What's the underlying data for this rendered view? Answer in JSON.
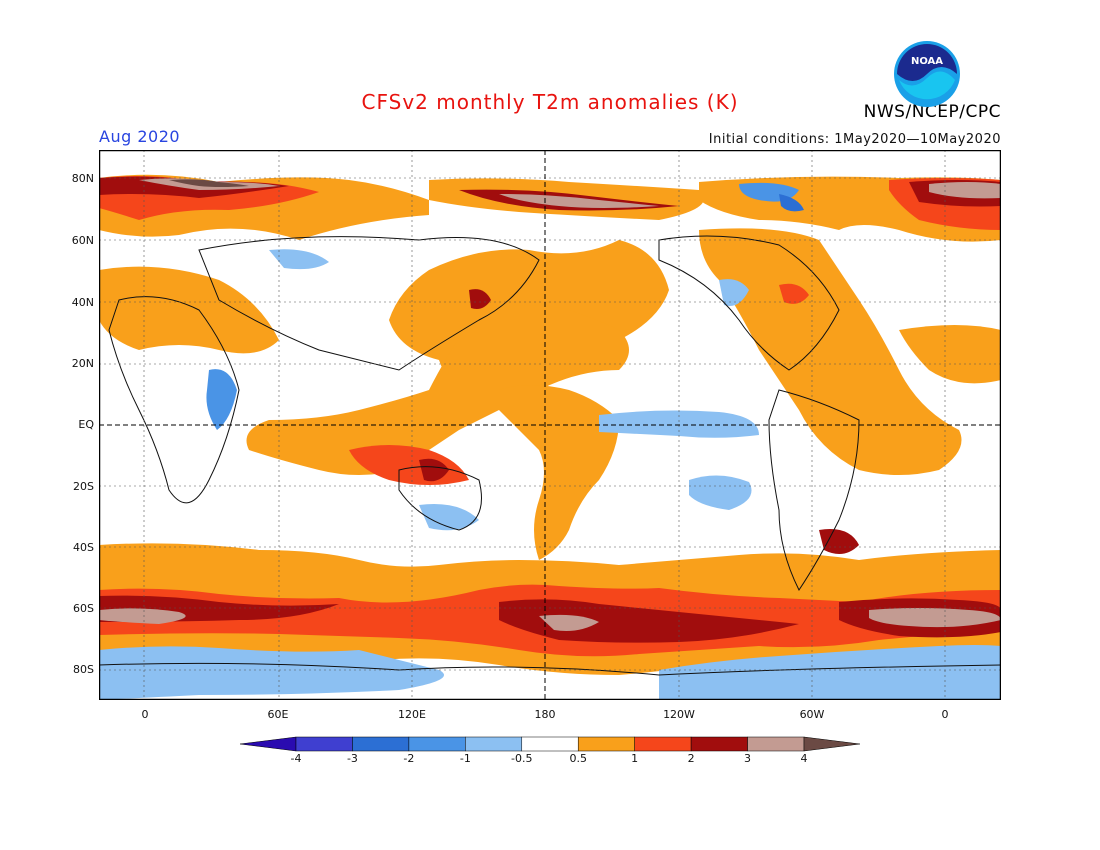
{
  "header": {
    "title": "CFSv2 monthly T2m anomalies (K)",
    "month": "Aug 2020",
    "initial_conditions": "Initial conditions: 1May2020—10May2020",
    "agency": "NWS/NCEP/CPC",
    "logo_text": "NOAA"
  },
  "axes": {
    "lat_labels": [
      "80N",
      "60N",
      "40N",
      "20N",
      "EQ",
      "20S",
      "40S",
      "60S",
      "80S"
    ],
    "lon_labels": [
      "0",
      "60E",
      "120E",
      "180",
      "120W",
      "60W",
      "0"
    ]
  },
  "legend": {
    "ticks": [
      "-4",
      "-3",
      "-2",
      "-1",
      "-0.5",
      "0.5",
      "1",
      "2",
      "3",
      "4"
    ],
    "colors": [
      "#2a0bb0",
      "#3f3fd0",
      "#2c6fd4",
      "#4a94e6",
      "#8cc0f2",
      "#ffffff",
      "#f9a01b",
      "#f5461b",
      "#a10d0d",
      "#c39b92",
      "#6b4a44"
    ]
  },
  "map": {
    "central_longitude": 180,
    "colors": {
      "ocean_white": "#ffffff",
      "warm_05_1": "#f9a01b",
      "warm_1_2": "#f5461b",
      "warm_2_3": "#a10d0d",
      "warm_3_4": "#c39b92",
      "warm_4": "#6b4a44",
      "cool_05_1": "#8cc0f2",
      "cool_1_2": "#4a94e6"
    }
  }
}
